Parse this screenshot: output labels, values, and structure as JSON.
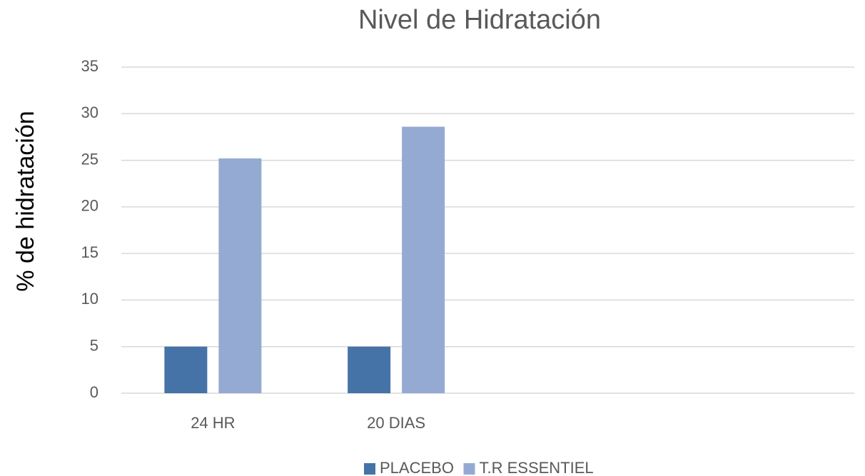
{
  "chart_data": {
    "type": "bar",
    "title": "Nivel de Hidratación",
    "ylabel": "% de hidratación",
    "categories": [
      "24 HR",
      "20 DIAS",
      null,
      null
    ],
    "series": [
      {
        "name": "PLACEBO",
        "color": "#4673a7",
        "values": [
          5,
          5,
          null,
          null
        ]
      },
      {
        "name": "T.R ESSENTIEL",
        "color": "#95aad3",
        "values": [
          25.2,
          28.6,
          null,
          null
        ]
      }
    ],
    "ylim": [
      0,
      35
    ],
    "yticks": [
      0,
      5,
      10,
      15,
      20,
      25,
      30,
      35
    ],
    "grid": true,
    "legend": "bottom"
  }
}
